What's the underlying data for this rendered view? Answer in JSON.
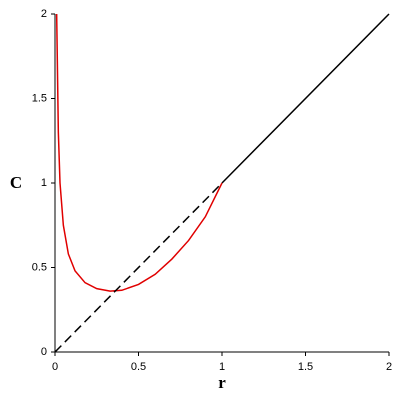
{
  "chart_data": {
    "type": "line",
    "xlabel": "r",
    "ylabel": "C",
    "xlim": [
      0,
      2
    ],
    "ylim": [
      0,
      2
    ],
    "xticks": [
      0,
      0.5,
      1,
      1.5,
      2
    ],
    "yticks": [
      0,
      0.5,
      1,
      1.5,
      2
    ],
    "grid": false,
    "series": [
      {
        "color": "#e00000",
        "style": "solid",
        "x": [
          0.01,
          0.02,
          0.03,
          0.05,
          0.08,
          0.12,
          0.18,
          0.25,
          0.33,
          0.4,
          0.5,
          0.6,
          0.7,
          0.8,
          0.9,
          1
        ],
        "values": [
          2,
          1.3,
          1.0,
          0.75,
          0.58,
          0.48,
          0.41,
          0.375,
          0.36,
          0.365,
          0.4,
          0.46,
          0.55,
          0.66,
          0.8,
          1
        ]
      },
      {
        "color": "#000000",
        "style": "dashed",
        "x": [
          0,
          1
        ],
        "values": [
          0,
          1
        ]
      },
      {
        "color": "#000000",
        "style": "solid",
        "x": [
          1,
          2
        ],
        "values": [
          1,
          2
        ]
      }
    ]
  }
}
